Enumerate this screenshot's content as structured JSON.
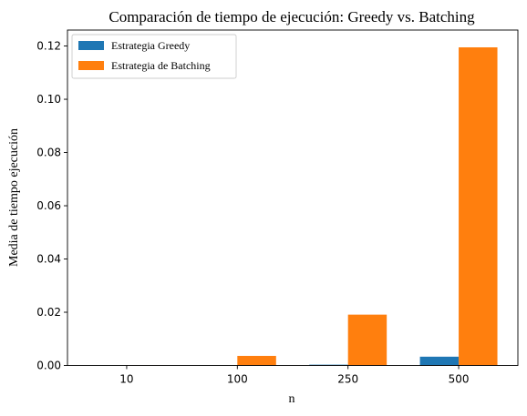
{
  "chart_data": {
    "type": "bar",
    "title": "Comparación de tiempo de ejecución: Greedy vs. Batching",
    "xlabel": "n",
    "ylabel": "Media de tiempo ejecución",
    "categories": [
      "10",
      "100",
      "250",
      "500"
    ],
    "series": [
      {
        "name": "Estrategia Greedy",
        "color": "#1f77b4",
        "values": [
          1e-05,
          4e-05,
          0.0003,
          0.0033
        ]
      },
      {
        "name": "Estrategia de Batching",
        "color": "#ff7f0e",
        "values": [
          3e-05,
          0.0036,
          0.0191,
          0.1195
        ]
      }
    ],
    "ylim": [
      0,
      0.126
    ],
    "yticks": [
      "0.00",
      "0.02",
      "0.04",
      "0.06",
      "0.08",
      "0.10",
      "0.12"
    ],
    "ytick_values": [
      0,
      0.02,
      0.04,
      0.06,
      0.08,
      0.1,
      0.12
    ],
    "legend_position": "top-left",
    "grid": false
  }
}
